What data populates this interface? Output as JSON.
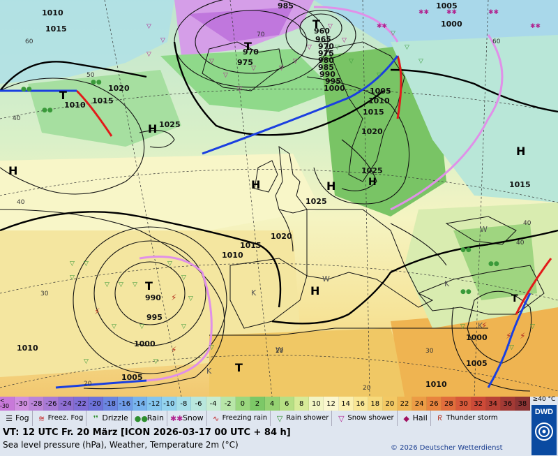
{
  "map": {
    "highs": [
      "H",
      "H",
      "H",
      "H",
      "H",
      "H",
      "H"
    ],
    "lows": [
      "T",
      "T",
      "T",
      "T",
      "T",
      "T"
    ],
    "aux_letters": [
      "W",
      "W",
      "W",
      "K",
      "K",
      "K",
      "K"
    ],
    "isobar_labels": [
      "1010",
      "1015",
      "1020",
      "1015",
      "1010",
      "985",
      "1005",
      "1000",
      "960",
      "965",
      "970",
      "975",
      "980",
      "985",
      "990",
      "995",
      "1000",
      "970",
      "975",
      "1025",
      "1005",
      "1010",
      "1015",
      "1020",
      "1025",
      "1025",
      "1015",
      "1020",
      "1010",
      "990",
      "995",
      "1000",
      "1005",
      "1015",
      "1010",
      "1000",
      "1005",
      "1010",
      "40",
      "40",
      "40",
      "30",
      "30",
      "20",
      "20",
      "20",
      "60",
      "60",
      "50",
      "70",
      "40"
    ]
  },
  "legend": {
    "scale_labels": [
      "< -30",
      "-30",
      "-28",
      "-26",
      "-24",
      "-22",
      "-20",
      "-18",
      "-16",
      "-14",
      "-12",
      "-10",
      "-8",
      "-6",
      "-4",
      "-2",
      "0",
      "2",
      "4",
      "6",
      "8",
      "10",
      "12",
      "14",
      "16",
      "18",
      "20",
      "22",
      "24",
      "26",
      "28",
      "30",
      "32",
      "34",
      "36",
      "38"
    ],
    "scale_end": "≥40 °C",
    "scale_colors": [
      "#c879d9",
      "#d08fe0",
      "#bb85d9",
      "#a87ad6",
      "#8f6fd3",
      "#7f6ed6",
      "#6d72d9",
      "#6b86e0",
      "#6f9ce8",
      "#78b4ee",
      "#85c6ef",
      "#93d3ee",
      "#a6dfe8",
      "#b9e7dd",
      "#c7ecd0",
      "#b8e6a8",
      "#9ad77e",
      "#7cc867",
      "#95d272",
      "#b6df84",
      "#d7eb98",
      "#f2f5c4",
      "#fbf7cf",
      "#fbf0b0",
      "#f9e694",
      "#f6d97b",
      "#f3c964",
      "#efb451",
      "#ec9c45",
      "#e8843e",
      "#e16d3c",
      "#d8593a",
      "#cc4a38",
      "#b84236",
      "#a23a35",
      "#8c3434"
    ],
    "symbols": [
      {
        "icon": "fog-icon",
        "label": "Fog"
      },
      {
        "icon": "freezing-fog-icon",
        "label": "Freez. Fog"
      },
      {
        "icon": "drizzle-icon",
        "label": "Drizzle"
      },
      {
        "icon": "rain-icon",
        "label": "Rain"
      },
      {
        "icon": "snow-icon",
        "label": "Snow"
      },
      {
        "icon": "freezing-rain-icon",
        "label": "Freezing rain"
      },
      {
        "icon": "rain-shower-icon",
        "label": "Rain shower"
      },
      {
        "icon": "snow-shower-icon",
        "label": "Snow shower"
      },
      {
        "icon": "hail-icon",
        "label": "Hail"
      },
      {
        "icon": "thunderstorm-icon",
        "label": "Thunder storm"
      }
    ],
    "valid_time": "VT: 12 UTC Fr.  20 März [ICON 2026-03-17  00 UTC + 84 h]",
    "parameters": "Sea level pressure (hPa), Weather, Temperature 2m (°C)",
    "copyright": "© 2026 Deutscher Wetterdienst",
    "logo_text": "DWD"
  }
}
